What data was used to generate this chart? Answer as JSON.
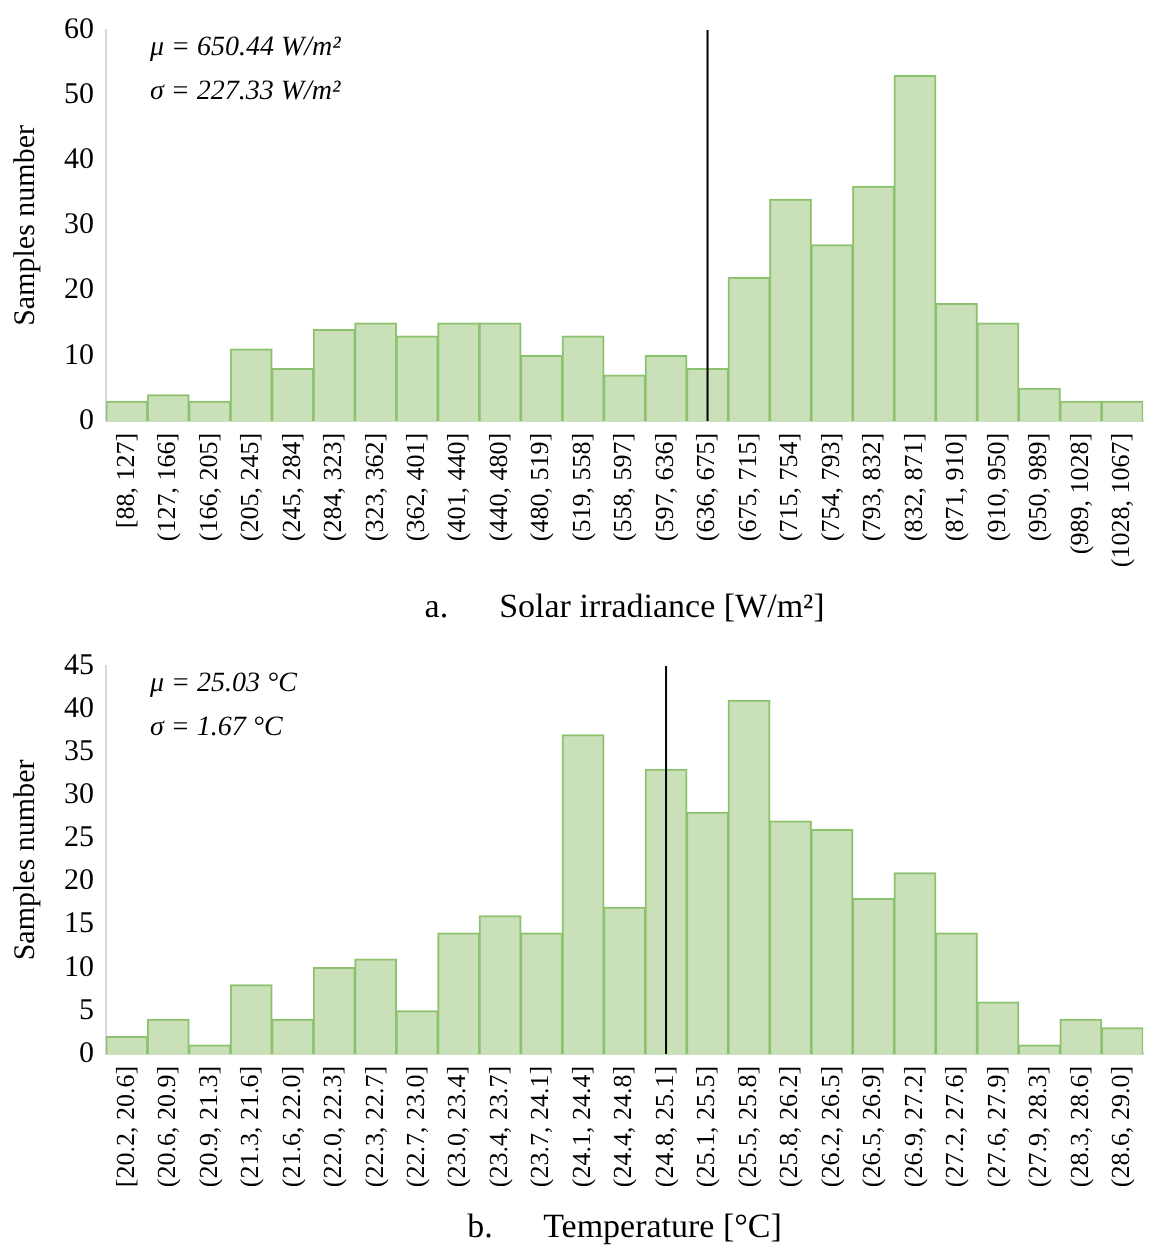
{
  "chart_data": [
    {
      "type": "bar",
      "categories": [
        "[88, 127]",
        "(127, 166]",
        "(166, 205]",
        "(205, 245]",
        "(245, 284]",
        "(284, 323]",
        "(323, 362]",
        "(362, 401]",
        "(401, 440]",
        "(440, 480]",
        "(480, 519]",
        "(519, 558]",
        "(558, 597]",
        "(597, 636]",
        "(636, 675]",
        "(675, 715]",
        "(715, 754]",
        "(754, 793]",
        "(793, 832]",
        "(832, 871]",
        "(871, 910]",
        "(910, 950]",
        "(950, 989]",
        "(989, 1028]",
        "(1028, 1067]"
      ],
      "values": [
        3,
        4,
        3,
        11,
        8,
        14,
        15,
        13,
        15,
        15,
        10,
        13,
        7,
        10,
        8,
        22,
        34,
        27,
        36,
        53,
        18,
        15,
        5,
        3,
        3
      ],
      "color": "#c9e0b9",
      "ylim": [
        0,
        60
      ],
      "yticks": [
        0,
        10,
        20,
        30,
        40,
        50,
        60
      ],
      "grid": false,
      "legend": false,
      "ylabel": "Samples number",
      "xlabel": "a.      Solar irradiance [W/m²]",
      "ref_lines": [
        {
          "axis": "x",
          "value": "(636, 675]",
          "color": "#000000"
        }
      ],
      "annotations": [
        "μ = 650.44 W/m²",
        "σ = 227.33 W/m²"
      ]
    },
    {
      "type": "bar",
      "categories": [
        "[20.2, 20.6]",
        "(20.6, 20.9]",
        "(20.9, 21.3]",
        "(21.3, 21.6]",
        "(21.6, 22.0]",
        "(22.0, 22.3]",
        "(22.3, 22.7]",
        "(22.7, 23.0]",
        "(23.0, 23.4]",
        "(23.4, 23.7]",
        "(23.7, 24.1]",
        "(24.1, 24.4]",
        "(24.4, 24.8]",
        "(24.8, 25.1]",
        "(25.1, 25.5]",
        "(25.5, 25.8]",
        "(25.8, 26.2]",
        "(26.2, 26.5]",
        "(26.5, 26.9]",
        "(26.9, 27.2]",
        "(27.2, 27.6]",
        "(27.6, 27.9]",
        "(27.9, 28.3]",
        "(28.3, 28.6]",
        "(28.6, 29.0]"
      ],
      "values": [
        2,
        4,
        1,
        8,
        4,
        10,
        11,
        5,
        14,
        16,
        14,
        37,
        17,
        33,
        28,
        41,
        27,
        26,
        18,
        21,
        14,
        6,
        1,
        4,
        3
      ],
      "color": "#c9e0b9",
      "ylim": [
        0,
        45
      ],
      "yticks": [
        0,
        5,
        10,
        15,
        20,
        25,
        30,
        35,
        40,
        45
      ],
      "grid": false,
      "legend": false,
      "ylabel": "Samples number",
      "xlabel": "b.      Temperature [°C]",
      "ref_lines": [
        {
          "axis": "x",
          "value": "(24.8, 25.1]",
          "color": "#000000"
        }
      ],
      "annotations": [
        "μ = 25.03 °C",
        "σ = 1.67 °C"
      ]
    }
  ]
}
